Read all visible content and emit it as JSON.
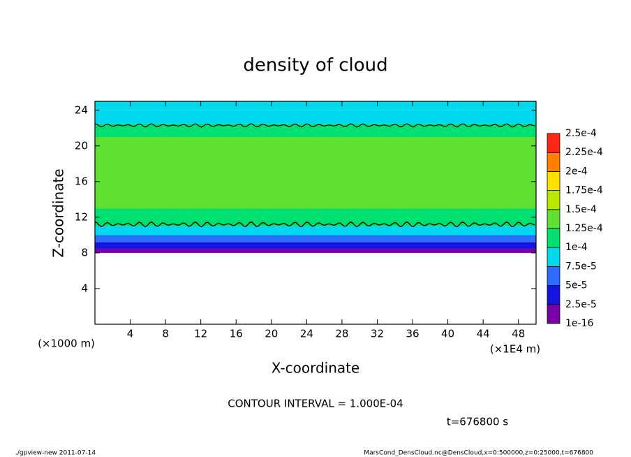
{
  "chart_data": {
    "type": "contour",
    "title": "density of cloud",
    "x_label": "X-coordinate",
    "y_label": "Z-coordinate",
    "y_unit": "(×1000 m)",
    "x_unit": "(×1E4 m)",
    "xlim": [
      0,
      50
    ],
    "ylim": [
      0,
      25
    ],
    "xticks": [
      4,
      8,
      12,
      16,
      20,
      24,
      28,
      32,
      36,
      40,
      44,
      48
    ],
    "yticks": [
      4,
      8,
      12,
      16,
      20,
      24
    ],
    "z_bins": [
      8,
      8.5,
      9.2,
      10,
      11,
      13,
      21,
      22.5,
      24,
      25
    ],
    "values": [
      1e-05,
      3.5e-05,
      6e-05,
      8.5e-05,
      0.00011,
      0.000135,
      0.00011,
      9e-05,
      8e-05
    ],
    "levels": [
      1e-16,
      {
        "value": 2.5e-05,
        "label": "2.5e-5"
      },
      {
        "value": 5e-05,
        "label": "5e-5"
      },
      {
        "value": 7.5e-05,
        "label": "7.5e-5"
      },
      {
        "value": 0.0001,
        "label": "1e-4"
      },
      {
        "value": 0.000125,
        "label": "1.25e-4"
      },
      {
        "value": 0.00015,
        "label": "1.5e-4"
      },
      {
        "value": 0.000175,
        "label": "1.75e-4"
      },
      {
        "value": 0.0002,
        "label": "2e-4"
      },
      {
        "value": 0.000225,
        "label": "2.25e-4"
      },
      {
        "value": 0.00025,
        "label": "2.5e-4"
      }
    ],
    "colors": [
      "#7a00a8",
      "#1414e0",
      "#2c6cff",
      "#00d8f0",
      "#00e070",
      "#60e030",
      "#b8e800",
      "#ffe000",
      "#ff8000",
      "#ff2818"
    ],
    "contour_interval": "CONTOUR INTERVAL = 1.000E-04",
    "time": "t=676800 s",
    "footer_left": "./gpview-new  2011-07-14",
    "footer_right": "MarsCond_DensCloud.nc@DensCloud,x=0:500000,z=0:25000,t=676800"
  }
}
